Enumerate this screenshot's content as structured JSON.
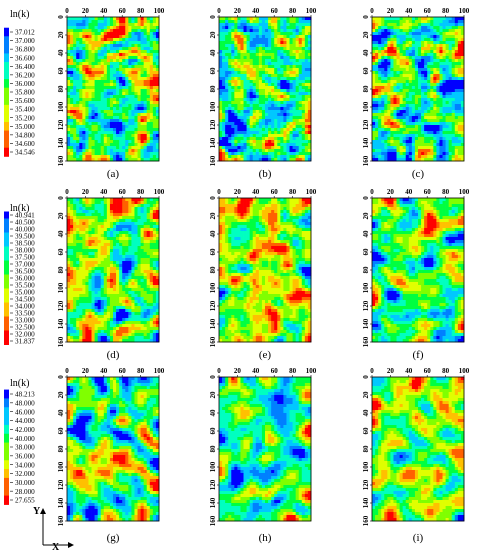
{
  "figure": {
    "colormap": [
      "#0000ff",
      "#0080ff",
      "#00c8ff",
      "#00ffc0",
      "#00ff40",
      "#80ff00",
      "#e0ff00",
      "#ffc000",
      "#ff6000",
      "#ff0000"
    ],
    "x_ticks": [
      "0",
      "20",
      "40",
      "60",
      "80",
      "100"
    ],
    "y_ticks": [
      "0",
      "20",
      "40",
      "60",
      "80",
      "100",
      "120",
      "140",
      "160"
    ],
    "axis_letters": {
      "x": "X",
      "y": "Y"
    },
    "rows": [
      {
        "legend_title": "ln(k)",
        "legend_labels": [
          "37.012",
          "37.000",
          "36.800",
          "36.600",
          "36.400",
          "36.200",
          "36.000",
          "35.800",
          "35.600",
          "35.400",
          "35.200",
          "35.000",
          "34.800",
          "34.600",
          "34.546"
        ]
      },
      {
        "legend_title": "ln(k)",
        "legend_labels": [
          "40.941",
          "40.500",
          "40.000",
          "39.500",
          "38.500",
          "38.000",
          "37.500",
          "37.000",
          "36.500",
          "36.000",
          "35.500",
          "35.000",
          "34.500",
          "34.000",
          "33.500",
          "33.000",
          "32.500",
          "32.000",
          "31.837"
        ]
      },
      {
        "legend_title": "ln(k)",
        "legend_labels": [
          "48.213",
          "48.000",
          "46.000",
          "44.000",
          "42.000",
          "40.000",
          "38.000",
          "36.000",
          "34.000",
          "32.000",
          "30.000",
          "28.000",
          "27.655"
        ]
      }
    ],
    "panel_labels": [
      "(a)",
      "(b)",
      "(c)",
      "(d)",
      "(e)",
      "(f)",
      "(g)",
      "(h)",
      "(i)"
    ]
  },
  "chart_data": {
    "type": "heatmap",
    "description_of_values": "ln(k) permeability fields on a 100 x 160 grid",
    "x_range": [
      0,
      100
    ],
    "y_range": [
      0,
      160
    ],
    "panels": [
      {
        "label": "(a)",
        "value_range": [
          34.546,
          37.012
        ]
      },
      {
        "label": "(b)",
        "value_range": [
          34.546,
          37.012
        ]
      },
      {
        "label": "(c)",
        "value_range": [
          34.546,
          37.012
        ]
      },
      {
        "label": "(d)",
        "value_range": [
          31.837,
          40.941
        ]
      },
      {
        "label": "(e)",
        "value_range": [
          31.837,
          40.941
        ]
      },
      {
        "label": "(f)",
        "value_range": [
          31.837,
          40.941
        ]
      },
      {
        "label": "(g)",
        "value_range": [
          27.655,
          48.213
        ]
      },
      {
        "label": "(h)",
        "value_range": [
          27.655,
          48.213
        ]
      },
      {
        "label": "(i)",
        "value_range": [
          27.655,
          48.213
        ]
      }
    ]
  }
}
